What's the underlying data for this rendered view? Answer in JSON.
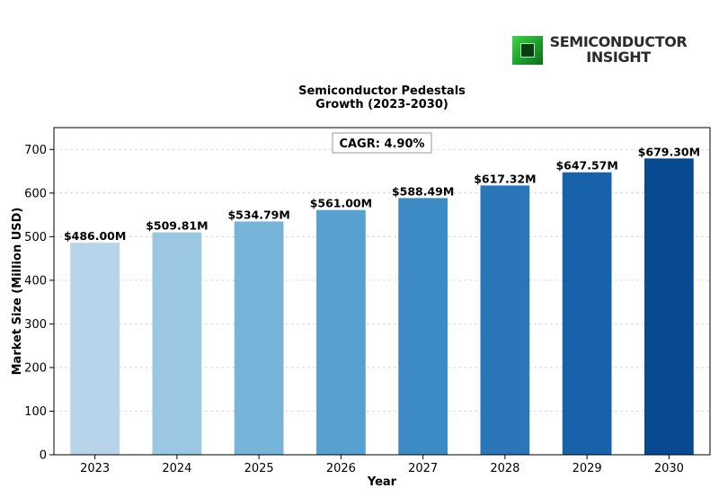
{
  "logo": {
    "line1": "SEMICONDUCTOR",
    "line2": "INSIGHT"
  },
  "chart_data": {
    "type": "bar",
    "title_lines": [
      "Semiconductor Pedestals",
      "Growth (2023-2030)"
    ],
    "xlabel": "Year",
    "ylabel": "Market Size (Million USD)",
    "categories": [
      "2023",
      "2024",
      "2025",
      "2026",
      "2027",
      "2028",
      "2029",
      "2030"
    ],
    "values": [
      486.0,
      509.81,
      534.79,
      561.0,
      588.49,
      617.32,
      647.57,
      679.3
    ],
    "data_labels": [
      "$486.00M",
      "$509.81M",
      "$534.79M",
      "$561.00M",
      "$588.49M",
      "$617.32M",
      "$647.57M",
      "$679.30M"
    ],
    "bar_colors": [
      "#b8d4ea",
      "#9ac7e1",
      "#77b4da",
      "#57a1d0",
      "#3d8bc5",
      "#2a76b8",
      "#1762aa",
      "#084a91"
    ],
    "ylim": [
      0,
      750
    ],
    "yticks": [
      0,
      100,
      200,
      300,
      400,
      500,
      600,
      700
    ],
    "grid": "y-dashed",
    "annotation": "CAGR: 4.90%"
  }
}
